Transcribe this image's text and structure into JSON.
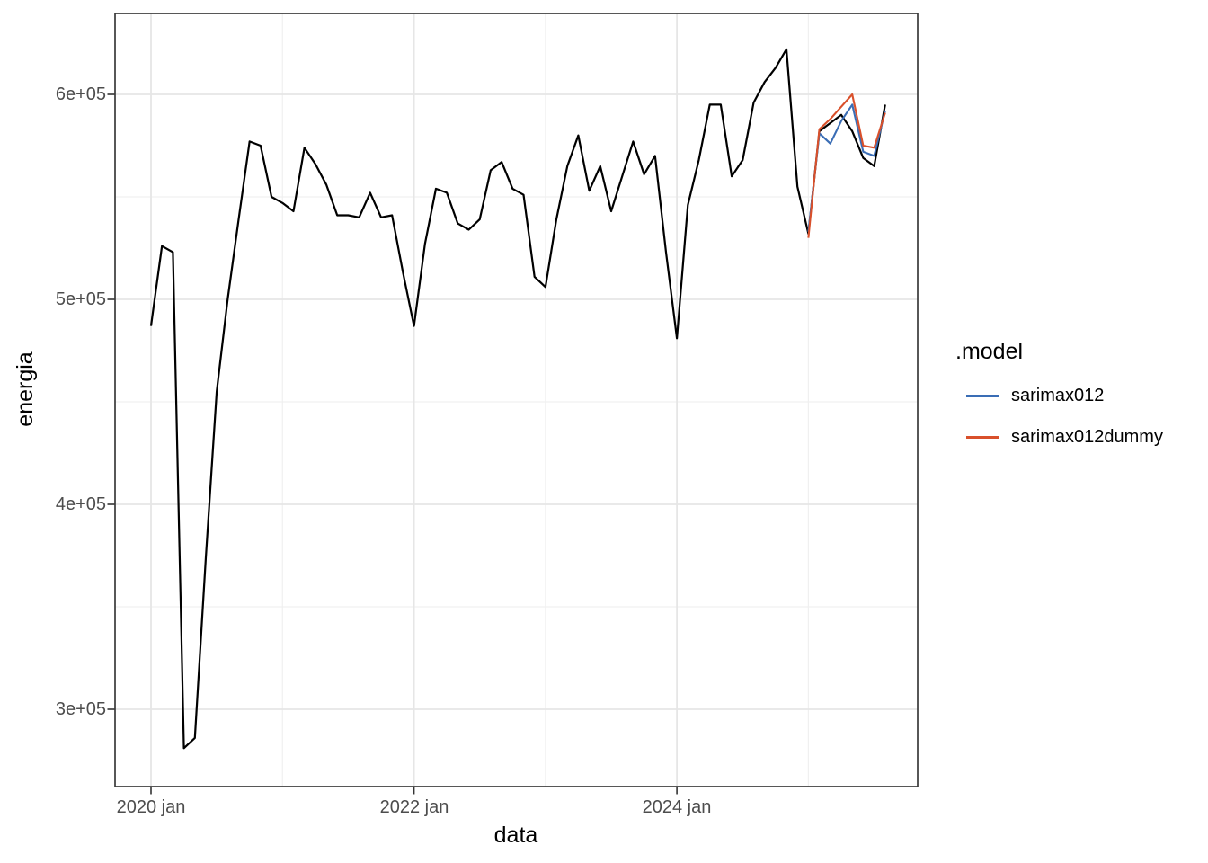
{
  "chart_data": {
    "type": "line",
    "title": "",
    "xlabel": "data",
    "ylabel": "energia",
    "x_start": "2020-01",
    "x_end": "2025-08",
    "frequency": "monthly",
    "grid": true,
    "legend_position": "right",
    "ylim": [
      262000,
      640000
    ],
    "y_ticks": [
      {
        "value": 300000,
        "label": "3e+05"
      },
      {
        "value": 400000,
        "label": "4e+05"
      },
      {
        "value": 500000,
        "label": "5e+05"
      },
      {
        "value": 600000,
        "label": "6e+05"
      }
    ],
    "y_minor": [
      350000,
      450000,
      550000
    ],
    "x_ticks": [
      {
        "month_index": 0,
        "label": "2020 jan"
      },
      {
        "month_index": 24,
        "label": "2022 jan"
      },
      {
        "month_index": 48,
        "label": "2024 jan"
      }
    ],
    "x_minor_month_indices": [
      12,
      36,
      60
    ],
    "legend": {
      "title": ".model",
      "entries": [
        {
          "label": "sarimax012",
          "color": "#3a6db5"
        },
        {
          "label": "sarimax012dummy",
          "color": "#d9502b"
        }
      ]
    },
    "series": [
      {
        "name": "energia observed",
        "color": "#000000",
        "start_month_index": 0,
        "in_legend": false,
        "values": [
          487000,
          526000,
          523000,
          281000,
          286000,
          374000,
          455000,
          500000,
          539000,
          577000,
          575000,
          550000,
          547000,
          543000,
          574000,
          566000,
          556000,
          541000,
          541000,
          540000,
          552000,
          540000,
          541000,
          513000,
          487000,
          527000,
          554000,
          552000,
          537000,
          534000,
          539000,
          563000,
          567000,
          554000,
          551000,
          511000,
          506000,
          539000,
          565000,
          580000,
          553000,
          565000,
          543000,
          560000,
          577000,
          561000,
          570000,
          523000,
          481000,
          546000,
          568000,
          595000,
          595000,
          560000,
          568000,
          596000,
          606000,
          613000,
          622000,
          555000,
          532000,
          582000,
          586000,
          590000,
          582000,
          569000,
          565000,
          595000
        ]
      },
      {
        "name": "sarimax012",
        "color": "#3a6db5",
        "start_month_index": 60,
        "in_legend": true,
        "values": [
          533000,
          581000,
          576000,
          587000,
          595000,
          572000,
          570000,
          592000
        ]
      },
      {
        "name": "sarimax012dummy",
        "color": "#d9502b",
        "start_month_index": 60,
        "in_legend": true,
        "values": [
          530000,
          583000,
          588000,
          594000,
          600000,
          575000,
          574000,
          591000
        ]
      }
    ]
  }
}
